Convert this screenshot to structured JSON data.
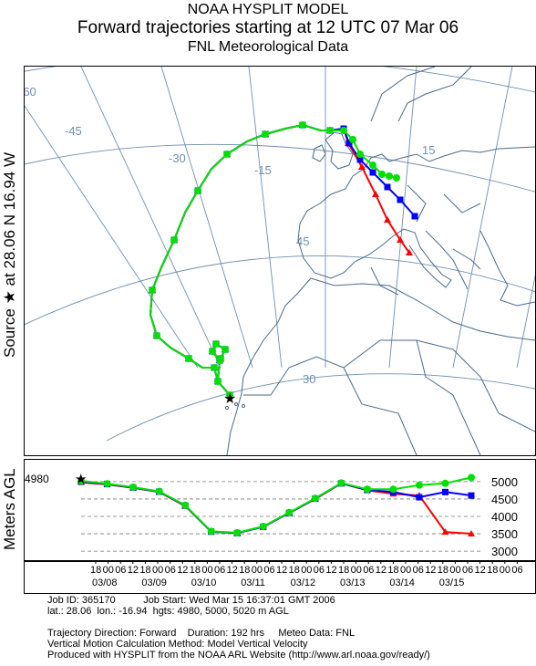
{
  "header": {
    "line1": "NOAA HYSPLIT MODEL",
    "line2": "Forward trajectories starting at 12 UTC 07 Mar 06",
    "line3": "FNL  Meteorological Data"
  },
  "side_label": "Source ★ at   28.06 N   16.94 W",
  "map": {
    "lon_labels": [
      "-60",
      "-45",
      "-30",
      "-15",
      "15"
    ],
    "lat_labels": [
      "45",
      "30"
    ],
    "source_marker": "star-icon"
  },
  "vertical": {
    "axis_title": "Meters AGL",
    "start_height": "4980",
    "ticks": [
      "5000",
      "4500",
      "4000",
      "3500",
      "3000"
    ]
  },
  "timeline": {
    "hours": [
      "18",
      "00",
      "06",
      "12",
      "18",
      "00",
      "06",
      "12",
      "18",
      "00",
      "06",
      "12",
      "18",
      "00",
      "06",
      "12",
      "18",
      "00",
      "06",
      "12",
      "18",
      "00",
      "06",
      "12",
      "18",
      "00",
      "06",
      "12",
      "18",
      "00",
      "06",
      "12",
      "18",
      "00",
      "06"
    ],
    "dates": [
      "03/08",
      "03/09",
      "03/10",
      "03/11",
      "03/12",
      "03/13",
      "03/14",
      "03/15"
    ]
  },
  "footer": {
    "job_id": "Job ID: 365170",
    "job_start": "Job Start: Wed Mar 15 16:37:01 GMT 2006",
    "source_loc": "lat.: 28.06  lon.: -16.94  hgts: 4980, 5000, 5020 m AGL",
    "direction": "Trajectory Direction: Forward",
    "duration": "Duration: 192 hrs",
    "meteo": "Meteo Data: FNL",
    "vertical_method": "Vertical Motion Calculation Method: Model Vertical Velocity",
    "produced": "Produced with HYSPLIT from the NOAA ARL Website (http://www.arl.noaa.gov/ready/)"
  },
  "colors": {
    "red": "#ff0000",
    "blue": "#0000ff",
    "green": "#00e000",
    "graticule": "#6f8fb0",
    "coast": "#4a6a8a"
  },
  "chart_data": {
    "type": "line",
    "x": [
      "03/08 00",
      "03/08 12",
      "03/09 00",
      "03/09 12",
      "03/10 00",
      "03/10 12",
      "03/11 00",
      "03/11 12",
      "03/12 00",
      "03/12 12",
      "03/13 00",
      "03/13 12",
      "03/14 00",
      "03/14 12",
      "03/15 00",
      "03/15 12"
    ],
    "series": [
      {
        "values": [
          4980,
          4920,
          4820,
          4700,
          4300,
          3560,
          3520,
          3700,
          4100,
          4500,
          4950,
          4750,
          4650,
          4600,
          3550,
          3500
        ]
      },
      {
        "values": [
          5000,
          4930,
          4830,
          4710,
          4310,
          3560,
          3520,
          3700,
          4100,
          4510,
          4950,
          4760,
          4700,
          4550,
          4700,
          4600
        ]
      },
      {
        "values": [
          5020,
          4940,
          4840,
          4720,
          4320,
          3570,
          3530,
          3710,
          4110,
          4520,
          4960,
          4780,
          4780,
          4900,
          4950,
          5120
        ]
      }
    ],
    "ylim": [
      2900,
      5200
    ]
  }
}
